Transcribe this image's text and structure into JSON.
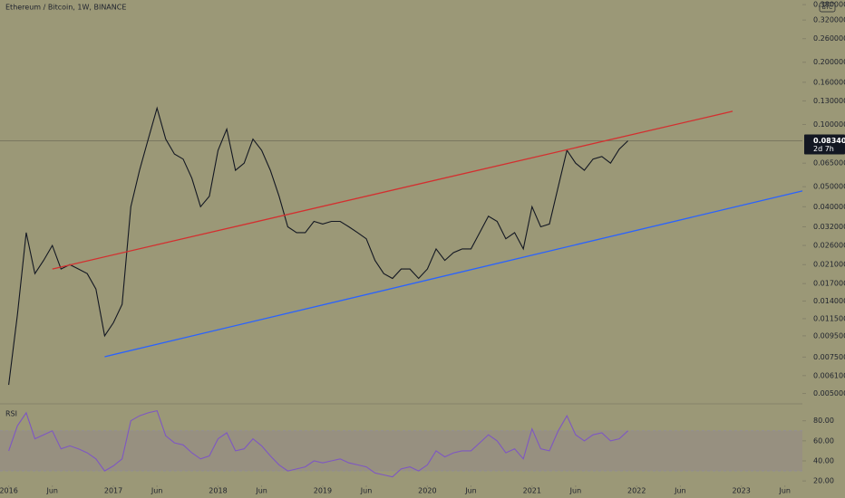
{
  "chart_data": [
    {
      "type": "line",
      "title": "Ethereum / Bitcoin, 1W, BINANCE",
      "currency": "BTC",
      "log_scale": true,
      "color": "#131722",
      "x": [
        "2016-01",
        "2016-02",
        "2016-03",
        "2016-04",
        "2016-05",
        "2016-06",
        "2016-07",
        "2016-08",
        "2016-09",
        "2016-10",
        "2016-11",
        "2016-12",
        "2017-01",
        "2017-02",
        "2017-03",
        "2017-04",
        "2017-05",
        "2017-06",
        "2017-07",
        "2017-08",
        "2017-09",
        "2017-10",
        "2017-11",
        "2017-12",
        "2018-01",
        "2018-02",
        "2018-03",
        "2018-04",
        "2018-05",
        "2018-06",
        "2018-07",
        "2018-08",
        "2018-09",
        "2018-10",
        "2018-11",
        "2018-12",
        "2019-01",
        "2019-02",
        "2019-03",
        "2019-04",
        "2019-05",
        "2019-06",
        "2019-07",
        "2019-08",
        "2019-09",
        "2019-10",
        "2019-11",
        "2019-12",
        "2020-01",
        "2020-02",
        "2020-03",
        "2020-04",
        "2020-05",
        "2020-06",
        "2020-07",
        "2020-08",
        "2020-09",
        "2020-10",
        "2020-11",
        "2020-12",
        "2021-01",
        "2021-02",
        "2021-03",
        "2021-04",
        "2021-05",
        "2021-06",
        "2021-07",
        "2021-08",
        "2021-09",
        "2021-10",
        "2021-11",
        "2021-12"
      ],
      "values": [
        0.0055,
        0.012,
        0.03,
        0.019,
        0.022,
        0.026,
        0.02,
        0.021,
        0.02,
        0.019,
        0.016,
        0.0095,
        0.011,
        0.0135,
        0.04,
        0.06,
        0.085,
        0.12,
        0.085,
        0.072,
        0.068,
        0.055,
        0.04,
        0.045,
        0.075,
        0.095,
        0.06,
        0.065,
        0.085,
        0.075,
        0.06,
        0.045,
        0.032,
        0.03,
        0.03,
        0.034,
        0.033,
        0.034,
        0.034,
        0.032,
        0.03,
        0.028,
        0.022,
        0.019,
        0.018,
        0.02,
        0.02,
        0.018,
        0.02,
        0.025,
        0.022,
        0.024,
        0.025,
        0.025,
        0.03,
        0.036,
        0.034,
        0.028,
        0.03,
        0.025,
        0.04,
        0.032,
        0.033,
        0.05,
        0.075,
        0.065,
        0.06,
        0.068,
        0.07,
        0.065,
        0.076,
        0.083409
      ],
      "current_price": 0.083409,
      "countdown": "2d 7h",
      "trendlines": [
        {
          "color": "#d32f2f",
          "x": [
            "2016-06",
            "2022-12"
          ],
          "values": [
            0.02,
            0.1158
          ]
        },
        {
          "color": "#2962ff",
          "x": [
            "2016-12",
            "2023-08"
          ],
          "values": [
            0.00753,
            0.0477
          ]
        }
      ],
      "xlim": [
        "2015-12",
        "2023-08"
      ],
      "xticks": [
        {
          "value": "2016-01",
          "label": "2016"
        },
        {
          "value": "2016-06",
          "label": "Jun"
        },
        {
          "value": "2017-01",
          "label": "2017"
        },
        {
          "value": "2017-06",
          "label": "Jun"
        },
        {
          "value": "2018-01",
          "label": "2018"
        },
        {
          "value": "2018-06",
          "label": "Jun"
        },
        {
          "value": "2019-01",
          "label": "2019"
        },
        {
          "value": "2019-06",
          "label": "Jun"
        },
        {
          "value": "2020-01",
          "label": "2020"
        },
        {
          "value": "2020-06",
          "label": "Jun"
        },
        {
          "value": "2021-01",
          "label": "2021"
        },
        {
          "value": "2021-06",
          "label": "Jun"
        },
        {
          "value": "2022-01",
          "label": "2022"
        },
        {
          "value": "2022-06",
          "label": "Jun"
        },
        {
          "value": "2023-01",
          "label": "2023"
        },
        {
          "value": "2023-06",
          "label": "Jun"
        }
      ],
      "ylim": [
        0.0045,
        0.4
      ],
      "yticks": [
        {
          "value": 0.38,
          "label": "0.380000"
        },
        {
          "value": 0.32,
          "label": "0.320000"
        },
        {
          "value": 0.26,
          "label": "0.260000"
        },
        {
          "value": 0.2,
          "label": "0.200000"
        },
        {
          "value": 0.16,
          "label": "0.160000"
        },
        {
          "value": 0.13,
          "label": "0.130000"
        },
        {
          "value": 0.1,
          "label": "0.100000"
        },
        {
          "value": 0.065,
          "label": "0.065000"
        },
        {
          "value": 0.05,
          "label": "0.050000"
        },
        {
          "value": 0.04,
          "label": "0.040000"
        },
        {
          "value": 0.032,
          "label": "0.032000"
        },
        {
          "value": 0.026,
          "label": "0.026000"
        },
        {
          "value": 0.021,
          "label": "0.021000"
        },
        {
          "value": 0.017,
          "label": "0.017000"
        },
        {
          "value": 0.014,
          "label": "0.014000"
        },
        {
          "value": 0.0115,
          "label": "0.011500"
        },
        {
          "value": 0.0095,
          "label": "0.009500"
        },
        {
          "value": 0.0075,
          "label": "0.007500"
        },
        {
          "value": 0.0061,
          "label": "0.006100"
        },
        {
          "value": 0.005,
          "label": "0.005000"
        }
      ]
    },
    {
      "type": "line",
      "title": "RSI",
      "color": "#7e57c2",
      "band": [
        30,
        70
      ],
      "values": [
        50,
        75,
        88,
        62,
        66,
        70,
        52,
        55,
        52,
        48,
        42,
        30,
        35,
        42,
        80,
        85,
        88,
        90,
        65,
        58,
        56,
        48,
        42,
        45,
        62,
        68,
        50,
        52,
        62,
        55,
        45,
        36,
        30,
        32,
        34,
        40,
        38,
        40,
        42,
        38,
        36,
        34,
        28,
        26,
        24,
        32,
        34,
        30,
        36,
        50,
        44,
        48,
        50,
        50,
        58,
        66,
        60,
        48,
        52,
        42,
        72,
        52,
        50,
        70,
        85,
        66,
        60,
        66,
        68,
        60,
        62,
        70
      ],
      "ylim": [
        12,
        96
      ],
      "yticks": [
        {
          "value": 80,
          "label": "80.00"
        },
        {
          "value": 60,
          "label": "60.00"
        },
        {
          "value": 40,
          "label": "40.00"
        },
        {
          "value": 20,
          "label": "20.00"
        }
      ]
    }
  ]
}
